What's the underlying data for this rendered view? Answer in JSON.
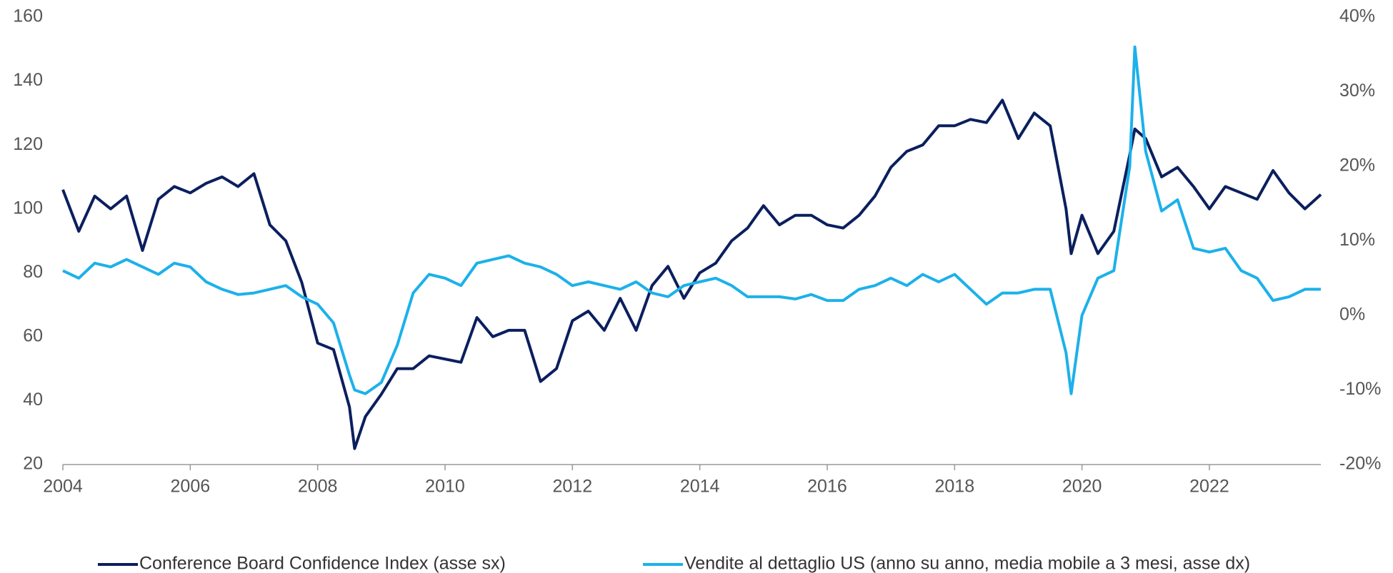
{
  "chart_data": {
    "type": "line",
    "x": [
      2004,
      2004.25,
      2004.5,
      2004.75,
      2005,
      2005.25,
      2005.5,
      2005.75,
      2006,
      2006.25,
      2006.5,
      2006.75,
      2007,
      2007.25,
      2007.5,
      2007.75,
      2008,
      2008.25,
      2008.5,
      2008.58,
      2008.75,
      2009,
      2009.25,
      2009.5,
      2009.75,
      2010,
      2010.25,
      2010.5,
      2010.75,
      2011,
      2011.25,
      2011.5,
      2011.75,
      2012,
      2012.25,
      2012.5,
      2012.75,
      2013,
      2013.25,
      2013.5,
      2013.75,
      2014,
      2014.25,
      2014.5,
      2014.75,
      2015,
      2015.25,
      2015.5,
      2015.75,
      2016,
      2016.25,
      2016.5,
      2016.75,
      2017,
      2017.25,
      2017.5,
      2017.75,
      2018,
      2018.25,
      2018.5,
      2018.75,
      2019,
      2019.25,
      2019.5,
      2019.75,
      2019.83,
      2020,
      2020.25,
      2020.5,
      2020.75,
      2020.83,
      2021,
      2021.25,
      2021.5,
      2021.75,
      2022,
      2022.25,
      2022.5,
      2022.75,
      2023,
      2023.25,
      2023.5,
      2023.75
    ],
    "series": [
      {
        "name": "Conference Board Confidence Index (asse sx)",
        "color": "#0b1f5e",
        "axis": "y",
        "values": [
          106,
          93,
          104,
          100,
          104,
          87,
          103,
          107,
          105,
          108,
          110,
          107,
          111,
          95,
          90,
          77,
          58,
          56,
          38,
          25,
          35,
          42,
          50,
          50,
          54,
          53,
          52,
          66,
          60,
          62,
          62,
          46,
          50,
          65,
          68,
          62,
          72,
          62,
          76,
          82,
          72,
          80,
          83,
          90,
          94,
          101,
          95,
          98,
          98,
          95,
          94,
          98,
          104,
          113,
          118,
          120,
          126,
          126,
          128,
          127,
          134,
          122,
          130,
          126,
          100,
          86,
          98,
          86,
          93,
          117,
          125,
          122,
          110,
          113,
          107,
          100,
          107,
          105,
          103,
          112,
          105,
          100,
          104.5
        ]
      },
      {
        "name": "Vendite al dettaglio US (anno su anno, media mobile a 3 mesi, asse dx)",
        "color": "#1cb1ea",
        "axis": "y2",
        "values": [
          6,
          5,
          7,
          6.5,
          7.5,
          6.5,
          5.5,
          7,
          6.5,
          4.5,
          3.5,
          2.8,
          3,
          3.5,
          4,
          2.5,
          1.5,
          -1,
          -8,
          -10,
          -10.5,
          -9,
          -4,
          3,
          5.5,
          5,
          4,
          7,
          7.5,
          8,
          7,
          6.5,
          5.5,
          4,
          4.5,
          4,
          3.5,
          4.5,
          3,
          2.5,
          4,
          4.5,
          5,
          4,
          2.5,
          2.5,
          2.5,
          2.2,
          2.8,
          2,
          2,
          3.5,
          4,
          5,
          4,
          5.5,
          4.5,
          5.5,
          3.5,
          1.5,
          3,
          3,
          3.5,
          3.5,
          -5,
          -10.5,
          0,
          5,
          6,
          20,
          36,
          22,
          14,
          15.5,
          9,
          8.5,
          9,
          6,
          5,
          2,
          2.5,
          3.5,
          3.5
        ]
      }
    ],
    "xlim": [
      2004,
      2023.75
    ],
    "xticks": [
      2004,
      2006,
      2008,
      2010,
      2012,
      2014,
      2016,
      2018,
      2020,
      2022
    ],
    "ylim": [
      20,
      160
    ],
    "yticks": [
      20,
      40,
      60,
      80,
      100,
      120,
      140,
      160
    ],
    "y2lim": [
      -20,
      40
    ],
    "y2ticks": [
      {
        "value": -20,
        "label": "-20%"
      },
      {
        "value": -10,
        "label": "-10%"
      },
      {
        "value": 0,
        "label": "0%"
      },
      {
        "value": 10,
        "label": "10%"
      },
      {
        "value": 20,
        "label": "20%"
      },
      {
        "value": 30,
        "label": "30%"
      },
      {
        "value": 40,
        "label": "40%"
      }
    ],
    "grid": false,
    "legend": "bottom"
  }
}
